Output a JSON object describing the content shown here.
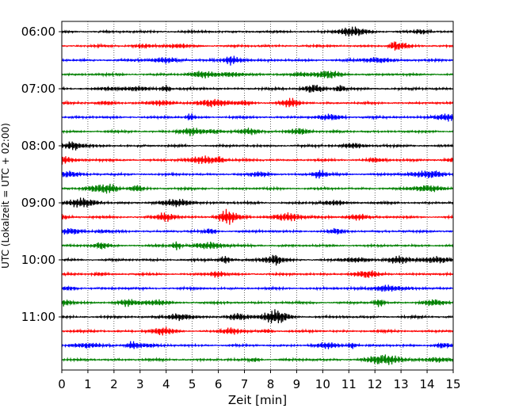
{
  "chart_data": {
    "type": "line",
    "title": "",
    "xlabel": "Zeit  [min]",
    "ylabel": "UTC (Lokalzeit = UTC + 02:00)",
    "xlim": [
      0,
      15
    ],
    "x_ticks": [
      0,
      1,
      2,
      3,
      4,
      5,
      6,
      7,
      8,
      9,
      10,
      11,
      12,
      13,
      14,
      15
    ],
    "x_tick_labels": [
      "0",
      "1",
      "2",
      "3",
      "4",
      "5",
      "6",
      "7",
      "8",
      "9",
      "10",
      "11",
      "12",
      "13",
      "14",
      "15"
    ],
    "y_tick_labels": [
      "06:00",
      "07:00",
      "08:00",
      "09:00",
      "10:00",
      "11:00"
    ],
    "start_time": "06:00",
    "trace_length_min": 15,
    "trace_count": 24,
    "trace_colors": [
      "#000000",
      "#ff0000",
      "#0000ff",
      "#008000"
    ],
    "vertical_grid": true,
    "grid_style": "dotted",
    "legend": "none"
  }
}
